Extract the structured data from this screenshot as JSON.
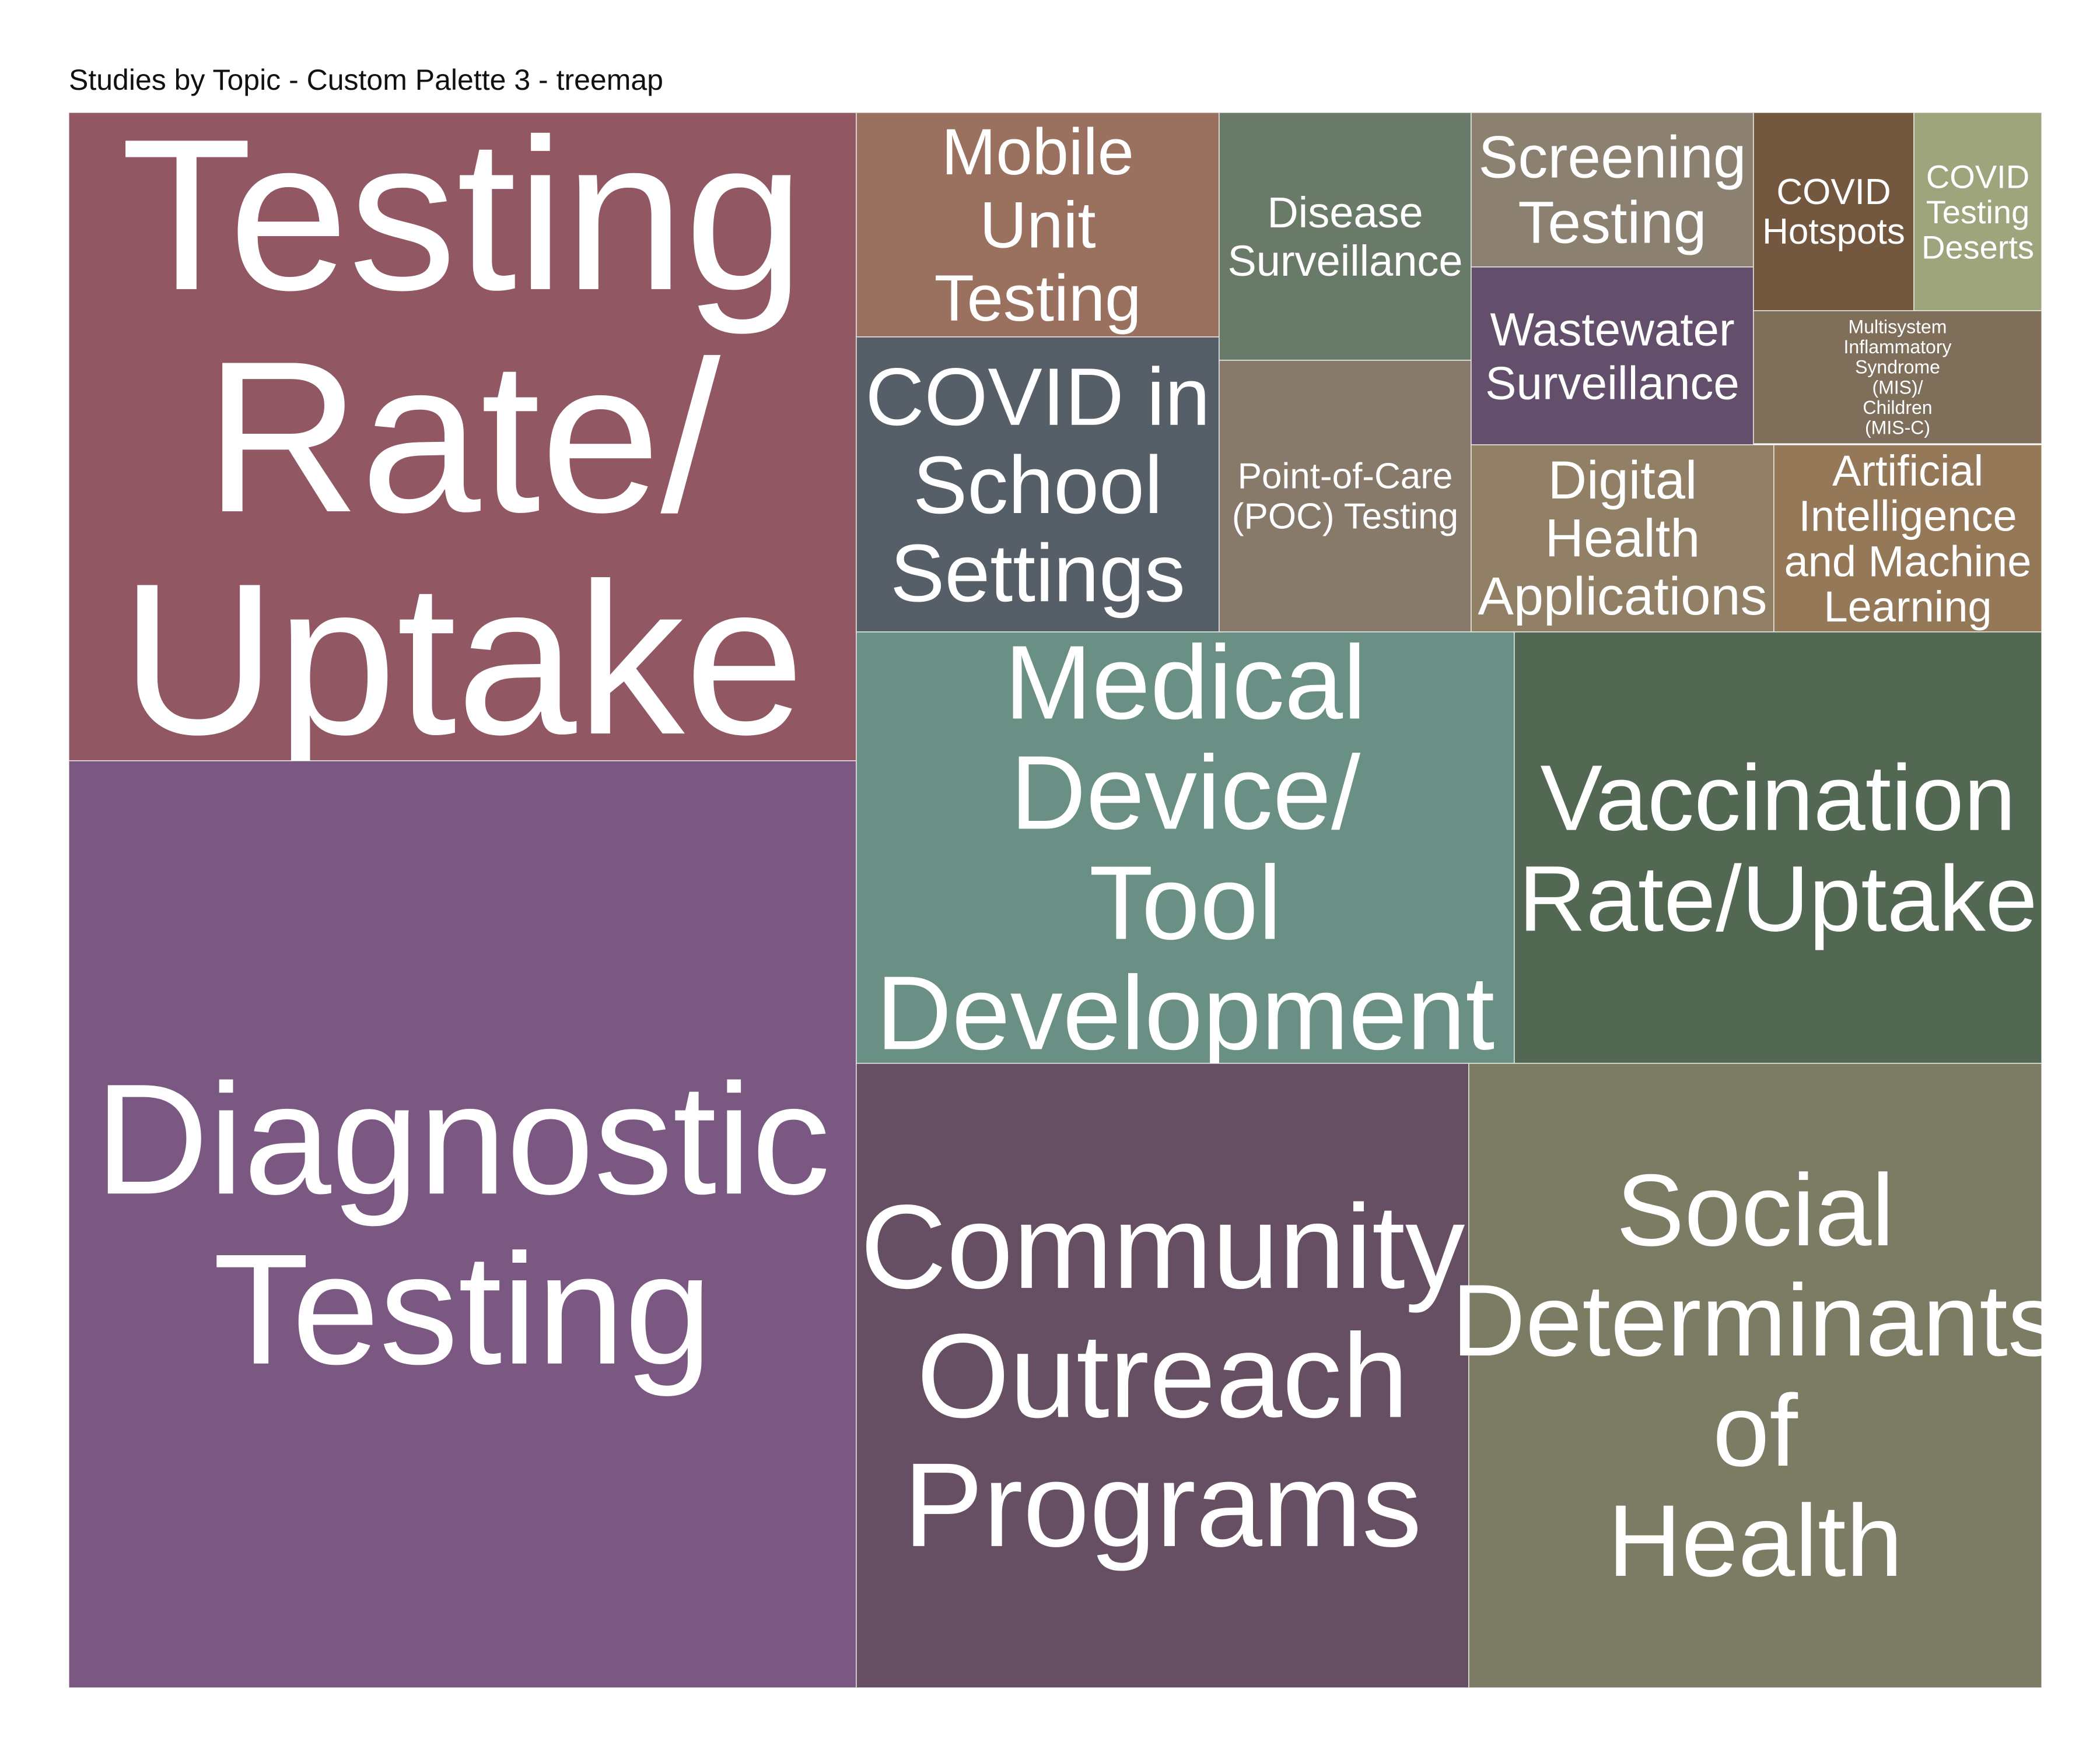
{
  "title": "Studies by Topic - Custom Palette 3 - treemap",
  "chart_data": {
    "type": "treemap",
    "title": "Studies by Topic - Custom Palette 3 - treemap",
    "items": [
      {
        "label": "Testing Rate/ Uptake",
        "value": 107,
        "color": "#915763"
      },
      {
        "label": "Diagnostic Testing",
        "value": 154,
        "color": "#7A5882"
      },
      {
        "label": "Mobile Unit Testing",
        "value": 17,
        "color": "#9A705E"
      },
      {
        "label": "COVID in School Settings",
        "value": 21,
        "color": "#565F68"
      },
      {
        "label": "Disease Surveillance",
        "value": 13,
        "color": "#6A7A68"
      },
      {
        "label": "Point-of-Care (POC) Testing",
        "value": 10,
        "color": "#877A6A"
      },
      {
        "label": "Screening Testing",
        "value": 7.5,
        "color": "#8C8070"
      },
      {
        "label": "Wastewater Surveillance",
        "value": 8.5,
        "color": "#634E6C"
      },
      {
        "label": "COVID Hotspots",
        "value": 4.3,
        "color": "#73583F"
      },
      {
        "label": "COVID Testing Deserts",
        "value": 3.1,
        "color": "#9EA57C"
      },
      {
        "label": "Multisystem Inflammatory Syndrome (MIS)/ Children (MIS-C)",
        "value": 3.7,
        "color": "#7E6E5A"
      },
      {
        "label": "Digital Health Applications",
        "value": 9,
        "color": "#918066"
      },
      {
        "label": "Artificial Intelligence and Machine Learning",
        "value": 8.5,
        "color": "#957858"
      },
      {
        "label": "Medical Device/ Tool Development",
        "value": 55,
        "color": "#6A9086"
      },
      {
        "label": "Vaccination Rate/Uptake",
        "value": 44,
        "color": "#536852"
      },
      {
        "label": "Community Outreach Programs",
        "value": 74,
        "color": "#674F63"
      },
      {
        "label": "Social Determinants of Health",
        "value": 69,
        "color": "#7C7B63"
      }
    ]
  }
}
